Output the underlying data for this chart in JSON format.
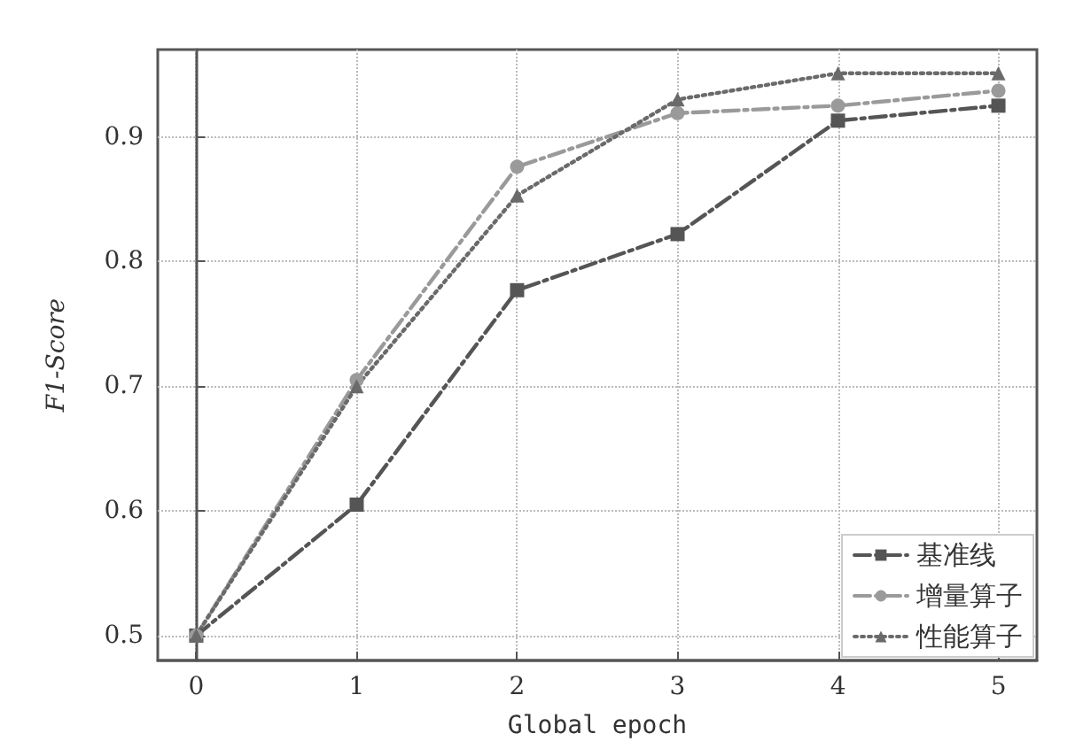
{
  "chart_data": {
    "type": "line",
    "xlabel": "Global epoch",
    "ylabel": "F1-Score",
    "x": [
      0,
      1,
      2,
      3,
      4,
      5
    ],
    "xlim": [
      -0.24,
      5.24
    ],
    "xticks": [
      0,
      1,
      2,
      3,
      4,
      5
    ],
    "ylim": [
      0.48,
      0.97
    ],
    "yticks": [
      0.5,
      0.6,
      0.7,
      0.8,
      0.9
    ],
    "grid": true,
    "legend": "bottom right",
    "series": [
      {
        "name": "基准线",
        "color": "#555555",
        "marker": "square",
        "line_style": "dashed",
        "values": [
          0.5,
          0.605,
          0.777,
          0.822,
          0.913,
          0.925
        ]
      },
      {
        "name": "增量算子",
        "color": "#9a9a9a",
        "marker": "circle",
        "line_style": "dashed",
        "values": [
          0.5,
          0.705,
          0.876,
          0.919,
          0.925,
          0.937
        ]
      },
      {
        "name": "性能算子",
        "color": "#6a6a6a",
        "marker": "triangle",
        "line_style": "dotted",
        "values": [
          0.5,
          0.7,
          0.853,
          0.93,
          0.951,
          0.951
        ]
      }
    ]
  }
}
